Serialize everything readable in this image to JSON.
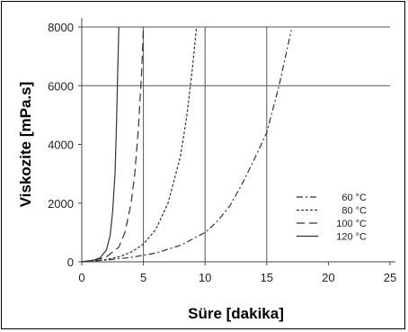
{
  "chart_data": {
    "type": "line",
    "xlabel": "Süre [dakika]",
    "ylabel": "Viskozite [mPa.s]",
    "xlim": [
      0,
      25
    ],
    "ylim": [
      0,
      8000
    ],
    "xticks": [
      "0",
      "5",
      "10",
      "15",
      "20",
      "25"
    ],
    "yticks": [
      "0",
      "2000",
      "4000",
      "6000",
      "8000"
    ],
    "grid": "major gridlines at x = 5, 10, 15 and y = 6000, 8000",
    "legend_position": "right, inside plot",
    "series": [
      {
        "name": "60 °C",
        "style": "dash-dot",
        "x": [
          0,
          2,
          4,
          6,
          8,
          10,
          11,
          12,
          13,
          14,
          15,
          16,
          17
        ],
        "y": [
          0,
          60,
          150,
          300,
          560,
          1000,
          1380,
          1900,
          2650,
          3500,
          4400,
          6000,
          7900
        ]
      },
      {
        "name": "80 °C",
        "style": "dotted",
        "x": [
          0,
          1,
          2,
          3,
          4,
          5,
          6,
          7,
          8,
          8.5,
          9,
          9.3
        ],
        "y": [
          0,
          30,
          80,
          170,
          330,
          600,
          1100,
          2000,
          3600,
          4900,
          6700,
          8000
        ]
      },
      {
        "name": "100 °C",
        "style": "dashed",
        "x": [
          0,
          1,
          2,
          3,
          3.5,
          4,
          4.3,
          4.6,
          4.85,
          5.0
        ],
        "y": [
          0,
          50,
          170,
          500,
          1000,
          2000,
          3000,
          4600,
          6400,
          8000
        ]
      },
      {
        "name": "120 °C",
        "style": "solid",
        "x": [
          0,
          1,
          1.5,
          2,
          2.3,
          2.5,
          2.7,
          2.8,
          2.9,
          3.0
        ],
        "y": [
          0,
          60,
          140,
          400,
          900,
          1700,
          3000,
          4400,
          6200,
          8000
        ]
      }
    ]
  }
}
